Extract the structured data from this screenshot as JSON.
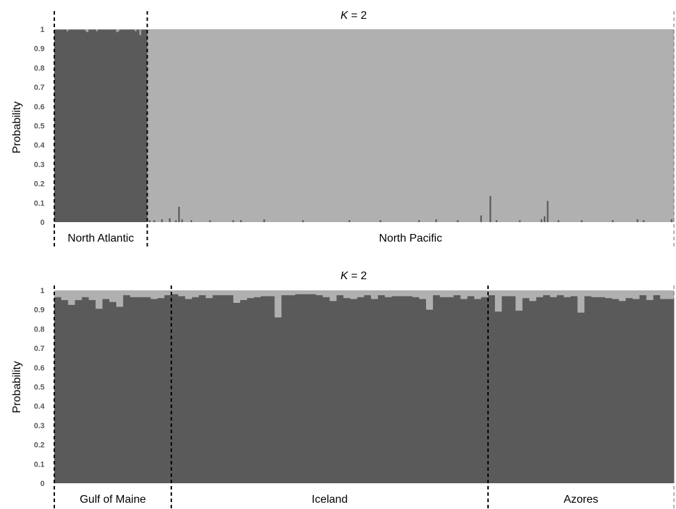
{
  "chart_data": [
    {
      "type": "bar",
      "stacked": true,
      "title_prefix": "K",
      "title_suffix": " = 2",
      "ylabel": "Probability",
      "ylim": [
        0,
        1
      ],
      "yticks": [
        "0",
        "0.1",
        "0.2",
        "0.3",
        "0.4",
        "0.5",
        "0.6",
        "0.7",
        "0.8",
        "0.9",
        "1"
      ],
      "colors": {
        "cluster1": "#5a5a5a",
        "cluster2": "#b0b0b0"
      },
      "groups": [
        {
          "name": "North Atlantic",
          "individuals": 60
        },
        {
          "name": "North Pacific",
          "individuals": 340
        }
      ],
      "cluster1_values_by_group": [
        {
          "default": 0.998,
          "overrides": [
            [
              8,
              0.99
            ],
            [
              20,
              0.99
            ],
            [
              21,
              0.985
            ],
            [
              27,
              0.99
            ],
            [
              40,
              0.985
            ],
            [
              41,
              0.99
            ],
            [
              52,
              0.99
            ],
            [
              55,
              0.97
            ]
          ]
        },
        {
          "default": 0.0,
          "overrides": [
            [
              1,
              0.01
            ],
            [
              4,
              0.01
            ],
            [
              9,
              0.015
            ],
            [
              14,
              0.02
            ],
            [
              18,
              0.01
            ],
            [
              20,
              0.08
            ],
            [
              22,
              0.015
            ],
            [
              28,
              0.01
            ],
            [
              40,
              0.01
            ],
            [
              55,
              0.01
            ],
            [
              60,
              0.01
            ],
            [
              75,
              0.015
            ],
            [
              100,
              0.01
            ],
            [
              130,
              0.01
            ],
            [
              150,
              0.01
            ],
            [
              175,
              0.01
            ],
            [
              186,
              0.015
            ],
            [
              200,
              0.01
            ],
            [
              215,
              0.035
            ],
            [
              221,
              0.135
            ],
            [
              225,
              0.01
            ],
            [
              240,
              0.01
            ],
            [
              254,
              0.015
            ],
            [
              256,
              0.03
            ],
            [
              258,
              0.11
            ],
            [
              265,
              0.01
            ],
            [
              280,
              0.01
            ],
            [
              300,
              0.01
            ],
            [
              316,
              0.015
            ],
            [
              320,
              0.01
            ],
            [
              338,
              0.015
            ]
          ]
        }
      ]
    },
    {
      "type": "bar",
      "stacked": true,
      "title_prefix": "K",
      "title_suffix": " = 2",
      "ylabel": "Probability",
      "ylim": [
        0,
        1
      ],
      "yticks": [
        "0",
        "0.1",
        "0.2",
        "0.3",
        "0.4",
        "0.5",
        "0.6",
        "0.7",
        "0.8",
        "0.9",
        "1"
      ],
      "colors": {
        "cluster1": "#5a5a5a",
        "cluster2": "#b0b0b0"
      },
      "groups": [
        {
          "name": "Gulf of Maine",
          "individuals": 17
        },
        {
          "name": "Iceland",
          "individuals": 46
        },
        {
          "name": "Azores",
          "individuals": 27
        }
      ],
      "cluster1_values_by_group": [
        {
          "values": [
            0.965,
            0.95,
            0.925,
            0.95,
            0.965,
            0.95,
            0.905,
            0.955,
            0.94,
            0.915,
            0.975,
            0.965,
            0.965,
            0.965,
            0.955,
            0.96,
            0.975
          ]
        },
        {
          "values": [
            0.98,
            0.97,
            0.955,
            0.965,
            0.975,
            0.96,
            0.975,
            0.975,
            0.975,
            0.935,
            0.95,
            0.96,
            0.965,
            0.97,
            0.97,
            0.86,
            0.975,
            0.975,
            0.98,
            0.98,
            0.98,
            0.975,
            0.965,
            0.945,
            0.975,
            0.96,
            0.955,
            0.965,
            0.975,
            0.955,
            0.975,
            0.965,
            0.97,
            0.97,
            0.97,
            0.965,
            0.955,
            0.9,
            0.975,
            0.965,
            0.965,
            0.975,
            0.955,
            0.97,
            0.955,
            0.965
          ]
        },
        {
          "values": [
            0.975,
            0.89,
            0.97,
            0.97,
            0.895,
            0.96,
            0.945,
            0.965,
            0.975,
            0.965,
            0.975,
            0.965,
            0.97,
            0.885,
            0.97,
            0.965,
            0.965,
            0.96,
            0.955,
            0.945,
            0.96,
            0.955,
            0.975,
            0.95,
            0.975,
            0.955,
            0.955
          ]
        }
      ]
    }
  ]
}
